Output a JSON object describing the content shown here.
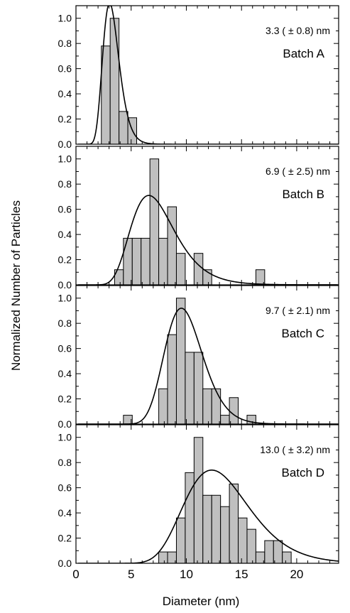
{
  "chart_data": {
    "type": "bar",
    "ylabel": "Normalized Number of Particles",
    "xlabel": "Diameter (nm)",
    "xlim": [
      0,
      23.8
    ],
    "ylim": [
      0,
      1.1
    ],
    "x_ticks": [
      "0",
      "5",
      "10",
      "15",
      "20"
    ],
    "y_ticks": [
      "0.0",
      "0.2",
      "0.4",
      "0.6",
      "0.8",
      "1.0"
    ],
    "bar_color": "#c0c0c0",
    "panels": [
      {
        "label": "Batch A",
        "annotation": "3.3 ( ± 0.8) nm",
        "bin_width": 0.8,
        "bins": [
          {
            "x": 2.7,
            "value": 0.78
          },
          {
            "x": 3.5,
            "value": 1.0
          },
          {
            "x": 4.3,
            "value": 0.26
          },
          {
            "x": 5.1,
            "value": 0.21
          }
        ],
        "fit": {
          "type": "lognormal",
          "mode": 3.05,
          "sigma": 0.24,
          "peak": 1.12
        }
      },
      {
        "label": "Batch B",
        "annotation": "6.9 ( ± 2.5) nm",
        "bin_width": 0.8,
        "bins": [
          {
            "x": 3.9,
            "value": 0.12
          },
          {
            "x": 4.7,
            "value": 0.37
          },
          {
            "x": 5.5,
            "value": 0.37
          },
          {
            "x": 6.3,
            "value": 0.37
          },
          {
            "x": 7.1,
            "value": 1.0
          },
          {
            "x": 7.9,
            "value": 0.37
          },
          {
            "x": 8.7,
            "value": 0.62
          },
          {
            "x": 9.5,
            "value": 0.25
          },
          {
            "x": 10.3,
            "value": 0.0
          },
          {
            "x": 11.1,
            "value": 0.25
          },
          {
            "x": 11.9,
            "value": 0.12
          },
          {
            "x": 16.7,
            "value": 0.12
          }
        ],
        "fit": {
          "type": "lognormal",
          "mode": 6.6,
          "sigma": 0.3,
          "peak": 0.71
        }
      },
      {
        "label": "Batch C",
        "annotation": "9.7 ( ± 2.1) nm",
        "bin_width": 0.8,
        "bins": [
          {
            "x": 4.7,
            "value": 0.07
          },
          {
            "x": 7.9,
            "value": 0.28
          },
          {
            "x": 8.7,
            "value": 0.71
          },
          {
            "x": 9.5,
            "value": 1.0
          },
          {
            "x": 10.3,
            "value": 0.57
          },
          {
            "x": 11.1,
            "value": 0.57
          },
          {
            "x": 11.9,
            "value": 0.28
          },
          {
            "x": 12.7,
            "value": 0.28
          },
          {
            "x": 13.5,
            "value": 0.07
          },
          {
            "x": 14.3,
            "value": 0.21
          },
          {
            "x": 15.1,
            "value": 0.0
          },
          {
            "x": 15.9,
            "value": 0.07
          }
        ],
        "fit": {
          "type": "lognormal",
          "mode": 9.55,
          "sigma": 0.18,
          "peak": 0.92
        }
      },
      {
        "label": "Batch D",
        "annotation": "13.0 ( ± 3.2) nm",
        "bin_width": 0.8,
        "bins": [
          {
            "x": 7.9,
            "value": 0.09
          },
          {
            "x": 8.7,
            "value": 0.09
          },
          {
            "x": 9.5,
            "value": 0.36
          },
          {
            "x": 10.3,
            "value": 0.72
          },
          {
            "x": 11.1,
            "value": 1.0
          },
          {
            "x": 11.9,
            "value": 0.54
          },
          {
            "x": 12.7,
            "value": 0.54
          },
          {
            "x": 13.5,
            "value": 0.45
          },
          {
            "x": 14.3,
            "value": 0.63
          },
          {
            "x": 15.1,
            "value": 0.36
          },
          {
            "x": 15.9,
            "value": 0.27
          },
          {
            "x": 16.7,
            "value": 0.09
          },
          {
            "x": 17.5,
            "value": 0.18
          },
          {
            "x": 18.3,
            "value": 0.18
          },
          {
            "x": 19.1,
            "value": 0.09
          }
        ],
        "fit": {
          "type": "lognormal",
          "mode": 12.3,
          "sigma": 0.24,
          "peak": 0.74
        }
      }
    ]
  }
}
